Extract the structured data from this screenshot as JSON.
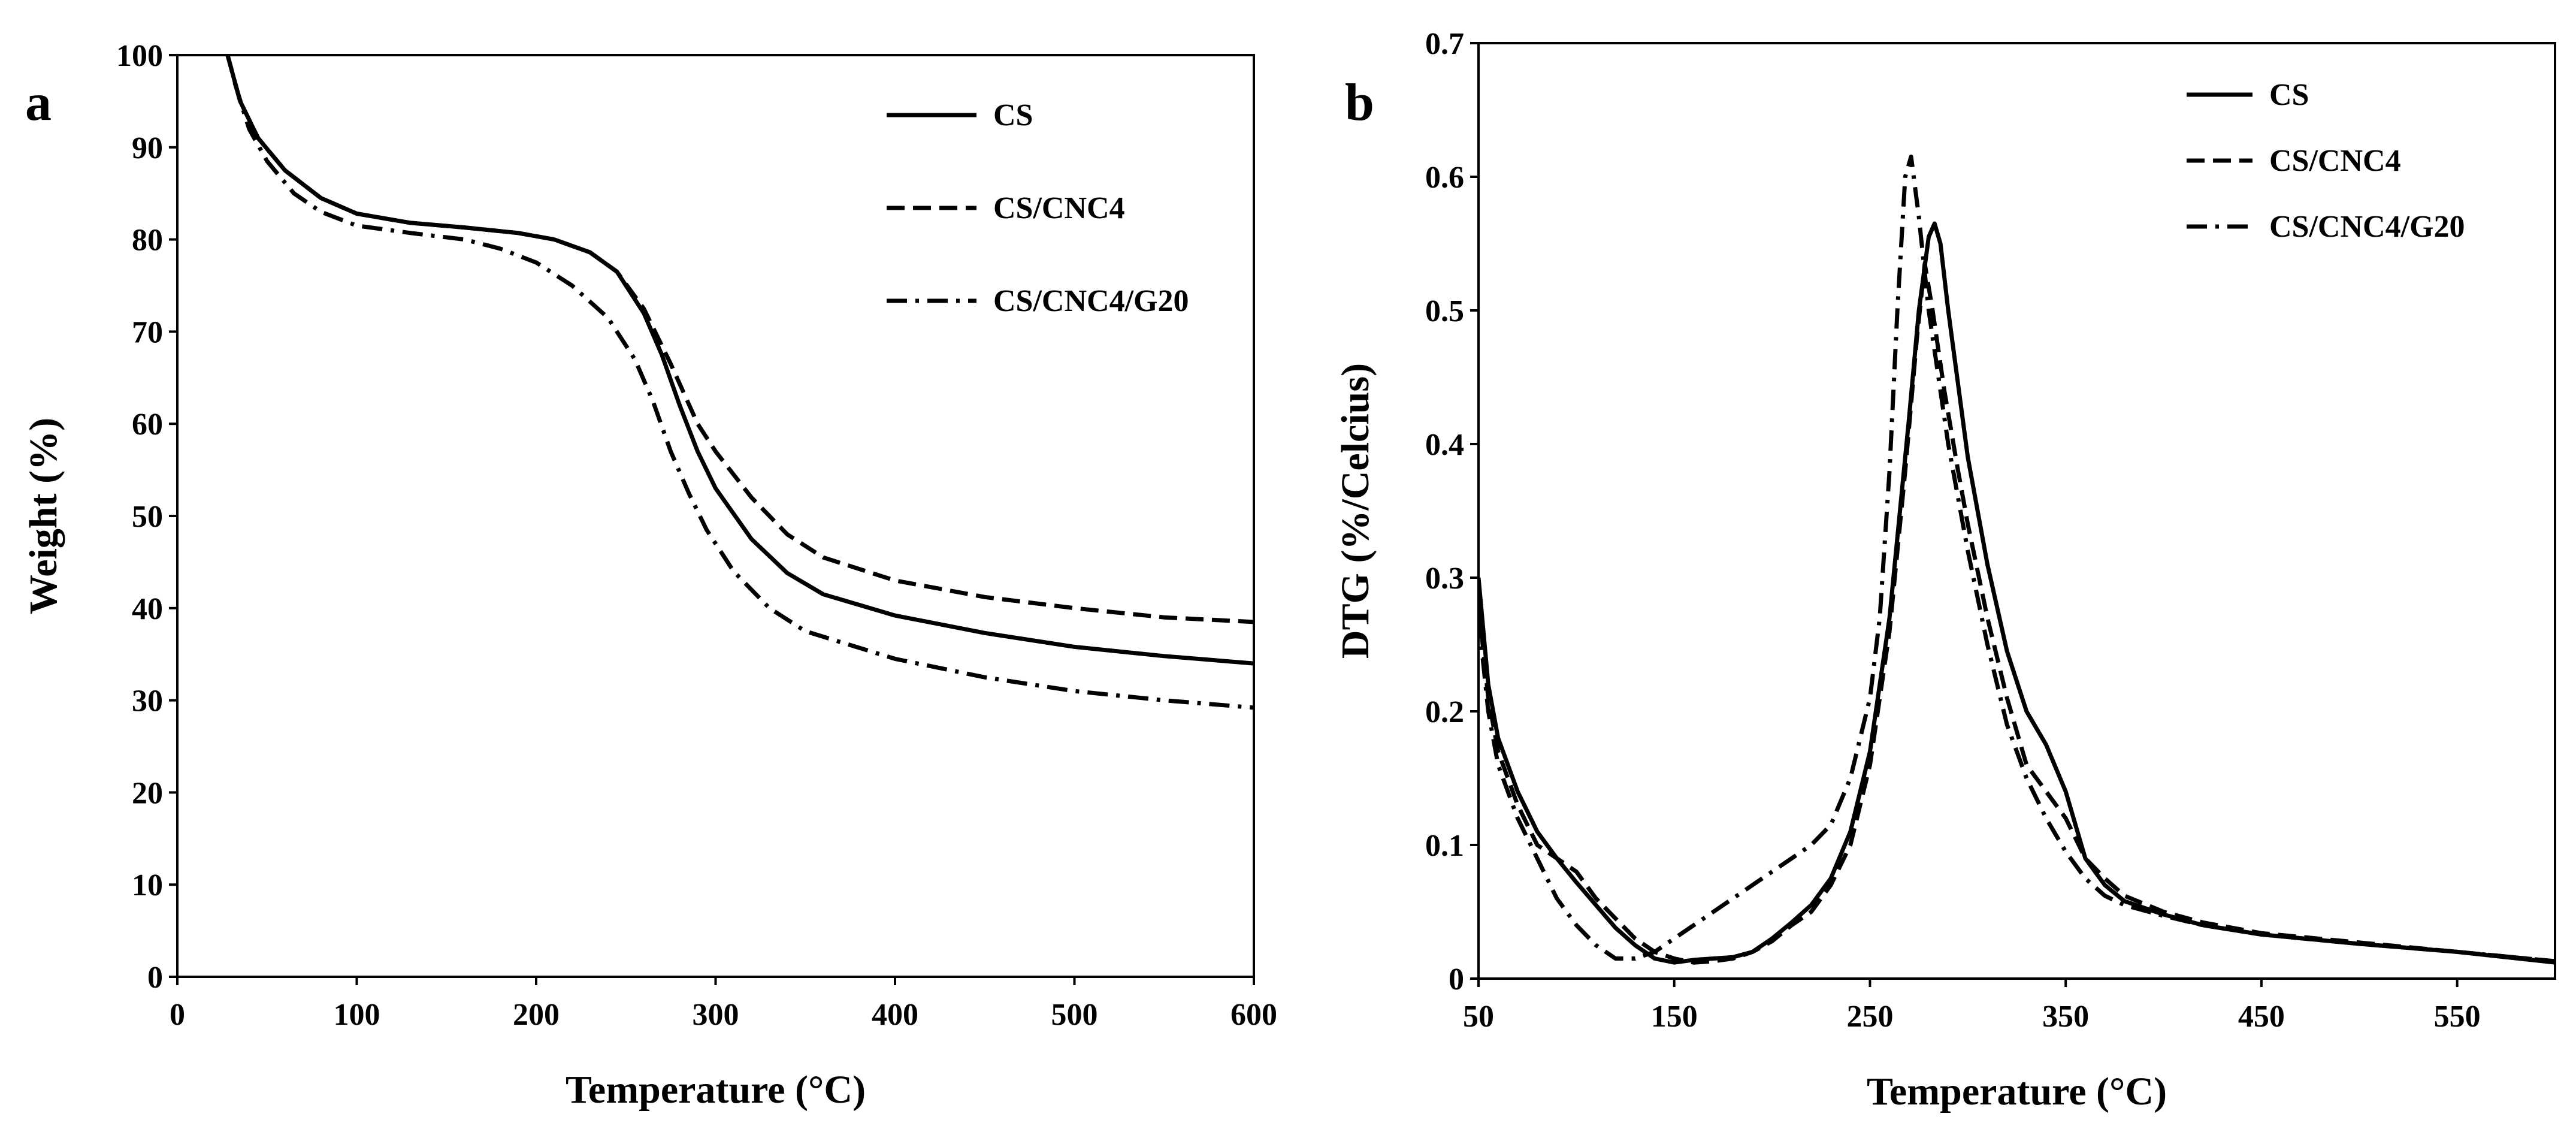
{
  "chart_data": [
    {
      "panel": "a",
      "type": "line",
      "title": "",
      "xlabel": "Temperature (°C)",
      "ylabel": "Weight (%)",
      "xlim": [
        0,
        600
      ],
      "ylim": [
        0,
        100
      ],
      "xticks": [
        0,
        100,
        200,
        300,
        400,
        500,
        600
      ],
      "yticks": [
        0,
        10,
        20,
        30,
        40,
        50,
        60,
        70,
        80,
        90,
        100
      ],
      "grid": false,
      "legend_position": "top-right",
      "series": [
        {
          "name": "CS",
          "style": "solid",
          "points": [
            [
              28,
              100
            ],
            [
              35,
              95
            ],
            [
              45,
              91
            ],
            [
              60,
              87.5
            ],
            [
              80,
              84.5
            ],
            [
              100,
              82.8
            ],
            [
              130,
              81.8
            ],
            [
              160,
              81.3
            ],
            [
              190,
              80.7
            ],
            [
              210,
              80
            ],
            [
              230,
              78.6
            ],
            [
              245,
              76.5
            ],
            [
              260,
              72
            ],
            [
              270,
              67.5
            ],
            [
              280,
              62
            ],
            [
              290,
              57
            ],
            [
              300,
              53
            ],
            [
              320,
              47.5
            ],
            [
              340,
              43.8
            ],
            [
              360,
              41.5
            ],
            [
              400,
              39.2
            ],
            [
              450,
              37.3
            ],
            [
              500,
              35.8
            ],
            [
              550,
              34.8
            ],
            [
              600,
              34
            ]
          ]
        },
        {
          "name": "CS/CNC4",
          "style": "dashed",
          "points": [
            [
              28,
              100
            ],
            [
              35,
              95
            ],
            [
              45,
              91
            ],
            [
              60,
              87.5
            ],
            [
              80,
              84.5
            ],
            [
              100,
              82.8
            ],
            [
              130,
              81.8
            ],
            [
              160,
              81.3
            ],
            [
              190,
              80.7
            ],
            [
              210,
              80
            ],
            [
              230,
              78.6
            ],
            [
              245,
              76.5
            ],
            [
              260,
              72.5
            ],
            [
              275,
              66.5
            ],
            [
              290,
              60
            ],
            [
              300,
              57
            ],
            [
              320,
              52
            ],
            [
              340,
              48
            ],
            [
              360,
              45.5
            ],
            [
              400,
              43
            ],
            [
              450,
              41.2
            ],
            [
              500,
              40
            ],
            [
              550,
              39
            ],
            [
              600,
              38.5
            ]
          ]
        },
        {
          "name": "CS/CNC4/G20",
          "style": "dashdot",
          "points": [
            [
              32,
              97
            ],
            [
              40,
              92
            ],
            [
              50,
              88.5
            ],
            [
              65,
              85
            ],
            [
              80,
              83
            ],
            [
              100,
              81.5
            ],
            [
              130,
              80.7
            ],
            [
              160,
              80
            ],
            [
              180,
              79
            ],
            [
              200,
              77.5
            ],
            [
              220,
              75
            ],
            [
              240,
              71.5
            ],
            [
              255,
              67
            ],
            [
              265,
              62.5
            ],
            [
              275,
              57
            ],
            [
              285,
              52.5
            ],
            [
              295,
              48.5
            ],
            [
              310,
              44
            ],
            [
              330,
              40
            ],
            [
              350,
              37.5
            ],
            [
              400,
              34.5
            ],
            [
              450,
              32.5
            ],
            [
              500,
              31
            ],
            [
              550,
              30
            ],
            [
              600,
              29.2
            ]
          ]
        }
      ]
    },
    {
      "panel": "b",
      "type": "line",
      "title": "",
      "xlabel": "Temperature (°C)",
      "ylabel": "DTG (%/Celcius)",
      "xlim": [
        50,
        600
      ],
      "ylim": [
        0,
        0.7
      ],
      "xticks": [
        50,
        150,
        250,
        350,
        450,
        550
      ],
      "yticks": [
        0,
        0.1,
        0.2,
        0.3,
        0.4,
        0.5,
        0.6,
        0.7
      ],
      "ytick_labels": [
        "0",
        "0.1",
        "0.2",
        "0.3",
        "0.4",
        "0.5",
        "0.6",
        "0.7"
      ],
      "grid": false,
      "legend_position": "top-right",
      "series": [
        {
          "name": "CS",
          "style": "solid",
          "points": [
            [
              50,
              0.3
            ],
            [
              55,
              0.22
            ],
            [
              60,
              0.18
            ],
            [
              70,
              0.14
            ],
            [
              80,
              0.11
            ],
            [
              90,
              0.09
            ],
            [
              100,
              0.072
            ],
            [
              110,
              0.055
            ],
            [
              120,
              0.038
            ],
            [
              130,
              0.025
            ],
            [
              140,
              0.015
            ],
            [
              150,
              0.012
            ],
            [
              160,
              0.014
            ],
            [
              170,
              0.015
            ],
            [
              180,
              0.016
            ],
            [
              190,
              0.02
            ],
            [
              200,
              0.03
            ],
            [
              210,
              0.042
            ],
            [
              220,
              0.055
            ],
            [
              230,
              0.075
            ],
            [
              240,
              0.11
            ],
            [
              250,
              0.17
            ],
            [
              260,
              0.27
            ],
            [
              270,
              0.42
            ],
            [
              275,
              0.5
            ],
            [
              280,
              0.555
            ],
            [
              283,
              0.565
            ],
            [
              286,
              0.55
            ],
            [
              290,
              0.5
            ],
            [
              300,
              0.39
            ],
            [
              310,
              0.31
            ],
            [
              320,
              0.245
            ],
            [
              330,
              0.2
            ],
            [
              340,
              0.175
            ],
            [
              350,
              0.14
            ],
            [
              360,
              0.09
            ],
            [
              370,
              0.07
            ],
            [
              380,
              0.058
            ],
            [
              400,
              0.048
            ],
            [
              420,
              0.04
            ],
            [
              450,
              0.033
            ],
            [
              500,
              0.026
            ],
            [
              550,
              0.02
            ],
            [
              600,
              0.012
            ]
          ]
        },
        {
          "name": "CS/CNC4",
          "style": "dashed",
          "points": [
            [
              50,
              0.28
            ],
            [
              55,
              0.21
            ],
            [
              60,
              0.17
            ],
            [
              70,
              0.13
            ],
            [
              80,
              0.1
            ],
            [
              90,
              0.09
            ],
            [
              100,
              0.08
            ],
            [
              110,
              0.06
            ],
            [
              120,
              0.045
            ],
            [
              130,
              0.03
            ],
            [
              140,
              0.02
            ],
            [
              150,
              0.015
            ],
            [
              160,
              0.012
            ],
            [
              170,
              0.013
            ],
            [
              180,
              0.015
            ],
            [
              190,
              0.02
            ],
            [
              200,
              0.028
            ],
            [
              210,
              0.04
            ],
            [
              220,
              0.05
            ],
            [
              230,
              0.07
            ],
            [
              240,
              0.1
            ],
            [
              250,
              0.16
            ],
            [
              260,
              0.26
            ],
            [
              268,
              0.38
            ],
            [
              274,
              0.48
            ],
            [
              278,
              0.535
            ],
            [
              282,
              0.5
            ],
            [
              288,
              0.44
            ],
            [
              295,
              0.38
            ],
            [
              300,
              0.34
            ],
            [
              310,
              0.27
            ],
            [
              320,
              0.21
            ],
            [
              330,
              0.16
            ],
            [
              340,
              0.14
            ],
            [
              350,
              0.12
            ],
            [
              360,
              0.09
            ],
            [
              370,
              0.075
            ],
            [
              380,
              0.062
            ],
            [
              400,
              0.05
            ],
            [
              420,
              0.042
            ],
            [
              450,
              0.034
            ],
            [
              500,
              0.027
            ],
            [
              550,
              0.02
            ],
            [
              600,
              0.013
            ]
          ]
        },
        {
          "name": "CS/CNC4/G20",
          "style": "dashdot",
          "points": [
            [
              50,
              0.27
            ],
            [
              55,
              0.2
            ],
            [
              60,
              0.16
            ],
            [
              70,
              0.12
            ],
            [
              80,
              0.09
            ],
            [
              90,
              0.06
            ],
            [
              100,
              0.04
            ],
            [
              110,
              0.025
            ],
            [
              120,
              0.015
            ],
            [
              130,
              0.015
            ],
            [
              140,
              0.02
            ],
            [
              150,
              0.03
            ],
            [
              160,
              0.04
            ],
            [
              170,
              0.05
            ],
            [
              180,
              0.06
            ],
            [
              190,
              0.07
            ],
            [
              200,
              0.08
            ],
            [
              210,
              0.09
            ],
            [
              220,
              0.1
            ],
            [
              230,
              0.115
            ],
            [
              240,
              0.15
            ],
            [
              250,
              0.21
            ],
            [
              255,
              0.27
            ],
            [
              260,
              0.38
            ],
            [
              264,
              0.5
            ],
            [
              268,
              0.6
            ],
            [
              271,
              0.615
            ],
            [
              275,
              0.57
            ],
            [
              280,
              0.5
            ],
            [
              290,
              0.4
            ],
            [
              300,
              0.32
            ],
            [
              310,
              0.25
            ],
            [
              320,
              0.19
            ],
            [
              330,
              0.15
            ],
            [
              340,
              0.12
            ],
            [
              350,
              0.095
            ],
            [
              360,
              0.075
            ],
            [
              370,
              0.062
            ],
            [
              380,
              0.055
            ],
            [
              400,
              0.047
            ],
            [
              420,
              0.04
            ],
            [
              450,
              0.033
            ],
            [
              500,
              0.026
            ],
            [
              550,
              0.02
            ],
            [
              600,
              0.013
            ]
          ]
        }
      ]
    }
  ]
}
